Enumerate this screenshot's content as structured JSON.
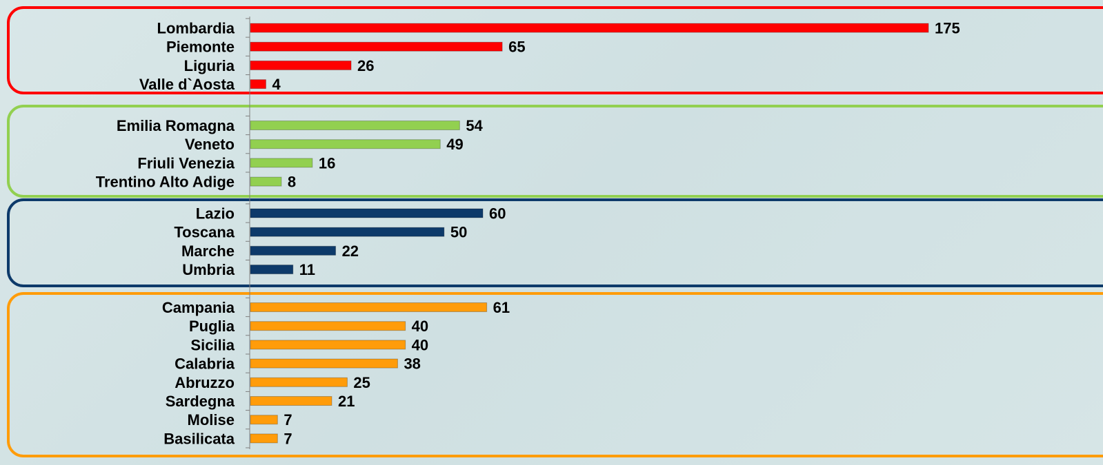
{
  "chart_data": {
    "type": "bar",
    "orientation": "horizontal",
    "title": "",
    "xlabel": "",
    "ylabel": "",
    "xlim": [
      0,
      175
    ],
    "grid": false,
    "groups": [
      {
        "color": "#ff0000",
        "categories": [
          "Lombardia",
          "Piemonte",
          "Liguria",
          "Valle d`Aosta"
        ],
        "values": [
          175,
          65,
          26,
          4
        ]
      },
      {
        "color": "#92d050",
        "categories": [
          "Emilia Romagna",
          "Veneto",
          "Friuli Venezia",
          "Trentino Alto Adige"
        ],
        "values": [
          54,
          49,
          16,
          8
        ]
      },
      {
        "color": "#0d3a6a",
        "categories": [
          "Lazio",
          "Toscana",
          "Marche",
          "Umbria"
        ],
        "values": [
          60,
          50,
          22,
          11
        ]
      },
      {
        "color": "#ff9c0a",
        "categories": [
          "Campania",
          "Puglia",
          "Sicilia",
          "Calabria",
          "Abruzzo",
          "Sardegna",
          "Molise",
          "Basilicata"
        ],
        "values": [
          61,
          40,
          40,
          38,
          25,
          21,
          7,
          7
        ]
      }
    ]
  }
}
